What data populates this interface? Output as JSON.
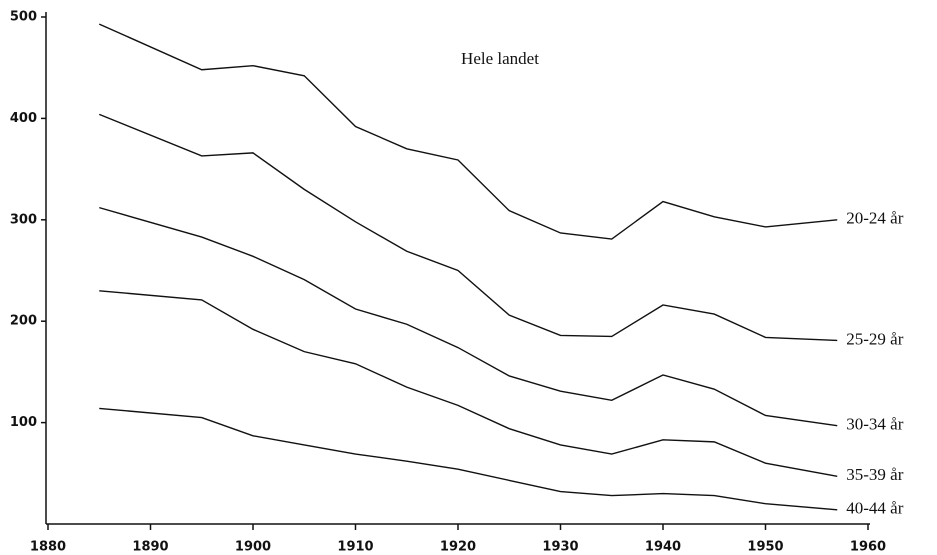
{
  "chart_data": {
    "type": "line",
    "title": "Hele landet",
    "x": [
      1885,
      1895,
      1900,
      1905,
      1910,
      1915,
      1920,
      1925,
      1930,
      1935,
      1940,
      1945,
      1950,
      1957
    ],
    "series": [
      {
        "name": "20-24 år",
        "color": "#111111",
        "values": [
          493,
          448,
          452,
          442,
          392,
          370,
          359,
          309,
          287,
          281,
          318,
          303,
          293,
          300
        ]
      },
      {
        "name": "25-29 år",
        "color": "#111111",
        "values": [
          404,
          363,
          366,
          330,
          298,
          269,
          250,
          206,
          186,
          185,
          216,
          207,
          184,
          181
        ]
      },
      {
        "name": "30-34 år",
        "color": "#111111",
        "values": [
          312,
          283,
          264,
          241,
          212,
          197,
          174,
          146,
          131,
          122,
          147,
          133,
          107,
          97
        ]
      },
      {
        "name": "35-39 år",
        "color": "#111111",
        "values": [
          230,
          221,
          192,
          170,
          158,
          135,
          117,
          94,
          78,
          69,
          83,
          81,
          60,
          47
        ]
      },
      {
        "name": "40-44 år",
        "color": "#111111",
        "values": [
          114,
          105,
          87,
          78,
          69,
          62,
          54,
          43,
          32,
          28,
          30,
          28,
          20,
          14
        ]
      }
    ],
    "xlim": [
      1880,
      1960
    ],
    "xticks": [
      1880,
      1890,
      1900,
      1910,
      1920,
      1930,
      1940,
      1950,
      1960
    ],
    "ylim": [
      0,
      500
    ],
    "yticks": [
      100,
      200,
      300,
      400,
      500
    ]
  }
}
